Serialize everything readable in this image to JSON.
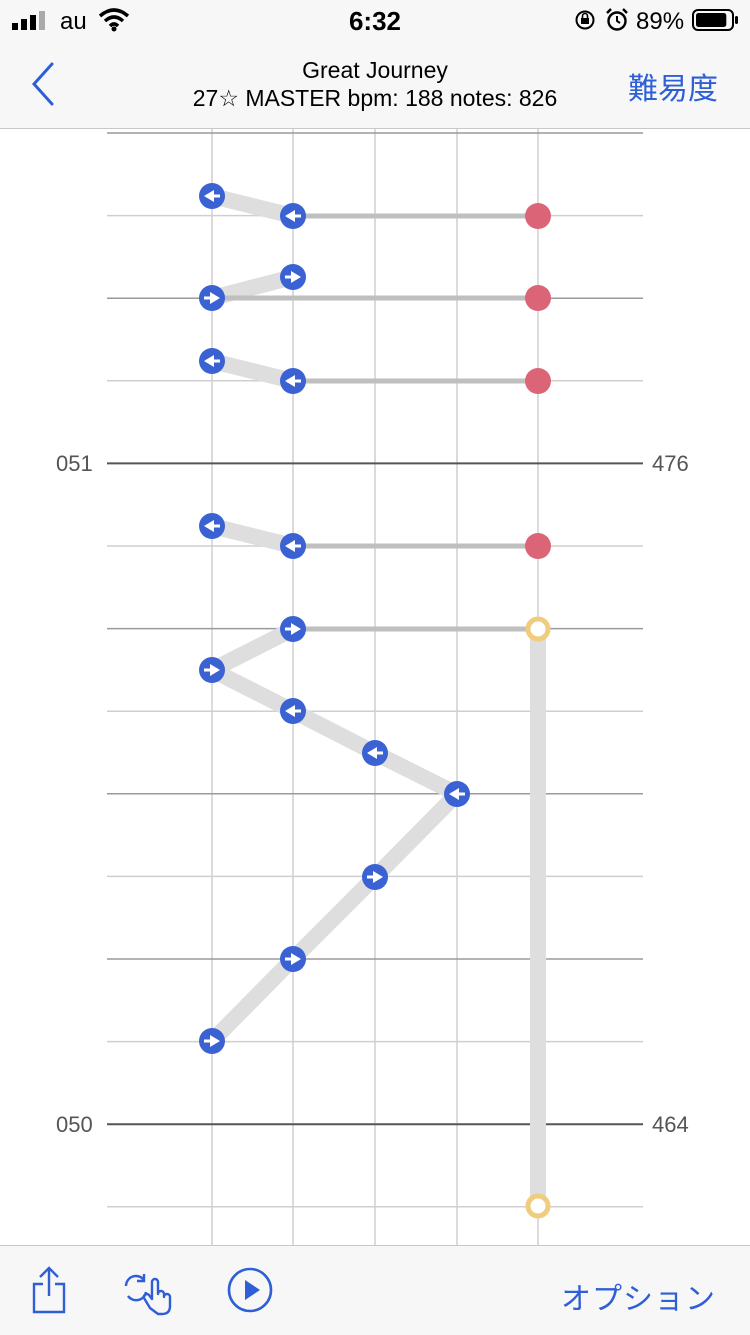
{
  "status_bar": {
    "carrier": "au",
    "time": "6:32",
    "battery_percent": "89%",
    "battery_level": 0.89,
    "icons": [
      "signal-icon",
      "wifi-icon",
      "orientation-lock-icon",
      "alarm-icon",
      "battery-icon"
    ]
  },
  "nav": {
    "title": "Great Journey",
    "subtitle": "27☆ MASTER bpm: 188 notes: 826",
    "difficulty_label": "難易度",
    "back_icon": "chevron-left-icon"
  },
  "chart": {
    "measure_labels": [
      {
        "left": "051",
        "right": "476"
      },
      {
        "left": "050",
        "right": "464"
      }
    ],
    "colors": {
      "tap_note": "#3a62d3",
      "hold_note": "#db6577",
      "slide_note": "#f0cd7d",
      "trail": "#dedede",
      "hold_bar": "#bfbfbf",
      "grid": "#cfcfcf",
      "beat_line": "#9a9a9a",
      "measure_line": "#555555"
    }
  },
  "toolbar": {
    "share_icon": "share-icon",
    "gesture_icon": "gesture-hand-icon",
    "play_icon": "play-icon",
    "option_label": "オプション"
  }
}
